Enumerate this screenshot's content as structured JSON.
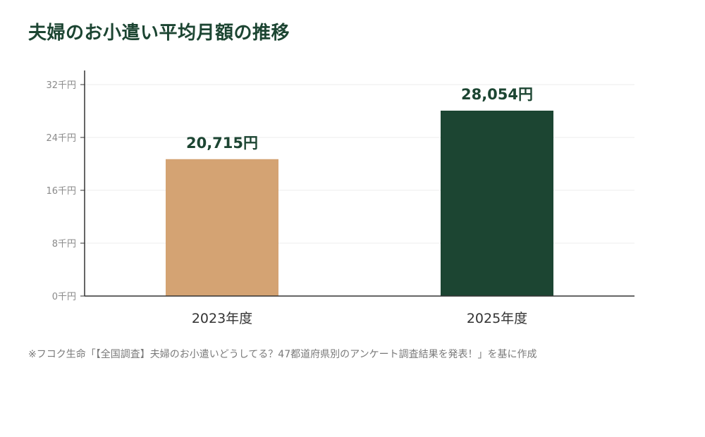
{
  "chart_data": {
    "type": "bar",
    "title": "夫婦のお小遣い平均月額の推移",
    "categories": [
      "2023年度",
      "2025年度"
    ],
    "values": [
      20715,
      28054
    ],
    "value_labels": [
      "20,715円",
      "28,054円"
    ],
    "bar_colors": [
      "#d4a373",
      "#1c4532"
    ],
    "ylim": [
      0,
      32000
    ],
    "yticks": [
      0,
      8000,
      16000,
      24000,
      32000
    ],
    "ytick_labels": [
      "0千円",
      "8千円",
      "16千円",
      "24千円",
      "32千円"
    ],
    "grid": true,
    "xlabel": "",
    "ylabel": ""
  },
  "note": "※フコク生命「【全国調査】夫婦のお小遣いどうしてる？47都道府県別のアンケート調査結果を発表！」を基に作成"
}
